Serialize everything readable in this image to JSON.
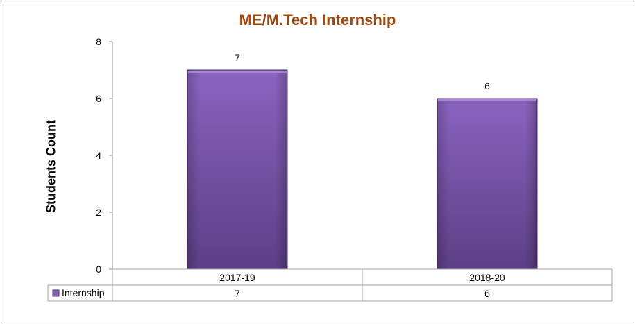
{
  "chart_data": {
    "type": "bar",
    "title": "ME/M.Tech Internship",
    "xlabel": "",
    "ylabel": "Students Count",
    "categories": [
      "2017-19",
      "2018-20"
    ],
    "series": [
      {
        "name": "Internship",
        "values": [
          7,
          6
        ],
        "color": "#8460b4"
      }
    ],
    "ylim": [
      0,
      8
    ],
    "yticks": [
      "0",
      "2",
      "4",
      "6",
      "8"
    ],
    "data_labels": [
      "7",
      "6"
    ],
    "grid": false,
    "legend": "data-table",
    "data_table": {
      "header": [
        "2017-19",
        "2018-20"
      ],
      "rows": [
        {
          "legend": "Internship",
          "values": [
            "7",
            "6"
          ]
        }
      ]
    }
  }
}
